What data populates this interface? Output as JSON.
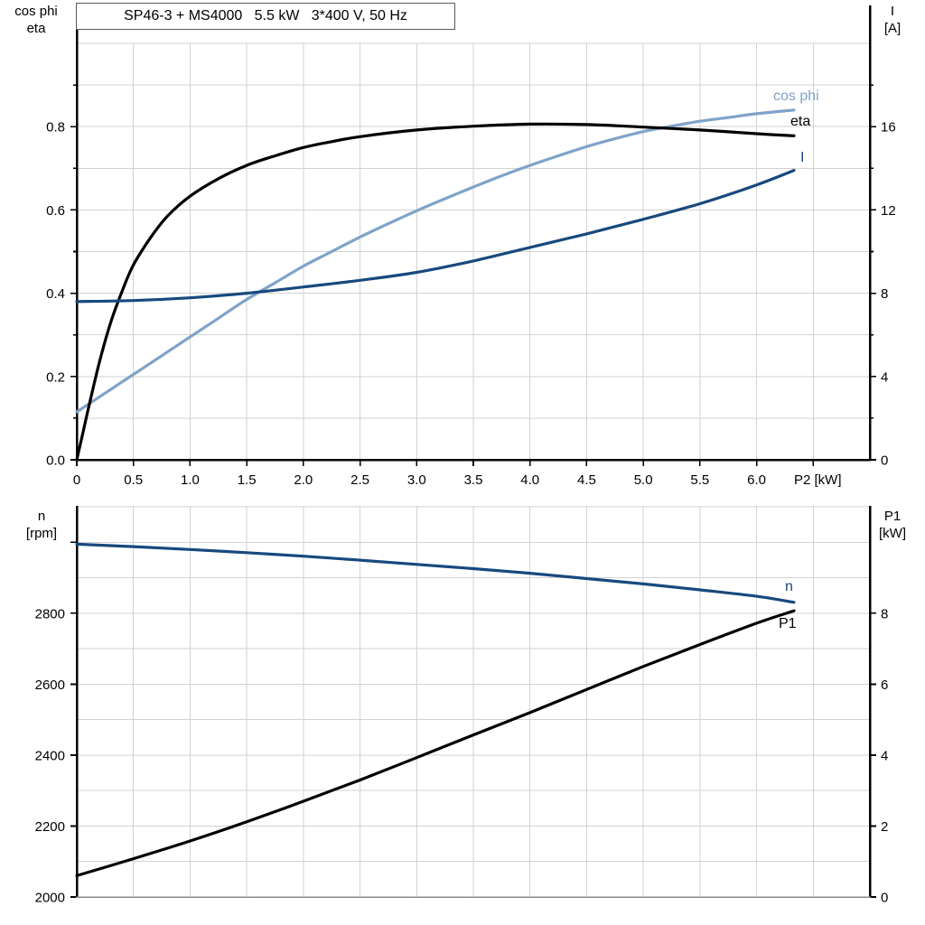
{
  "chart_data": [
    {
      "id": "top-chart",
      "type": "line",
      "title": "SP46-3 + MS4000   5.5 kW   3*400 V, 50 Hz",
      "xlabel": "P2 [kW]",
      "ylabel_left_lines": "cos phi\neta",
      "ylabel_right_lines": "I\n[A]",
      "xlim": [
        0,
        7
      ],
      "ylim_left": [
        0,
        1.0
      ],
      "ylim_right": [
        0,
        20
      ],
      "grid": {
        "x_step": 0.5,
        "y_step_left": 0.1,
        "color": "#d2d2d2"
      },
      "x_tick_values": [
        0,
        0.5,
        1,
        1.5,
        2,
        2.5,
        3,
        3.5,
        4,
        4.5,
        5,
        5.5,
        6,
        6.5
      ],
      "x_tick_labels": [
        "0",
        "0.5",
        "1.0",
        "1.5",
        "2.0",
        "2.5",
        "3.0",
        "3.5",
        "4.0",
        "4.5",
        "5.0",
        "5.5",
        "6.0",
        ""
      ],
      "left_tick_values": [
        0,
        0.2,
        0.4,
        0.6,
        0.8
      ],
      "left_tick_labels": [
        "0.0",
        "0.2",
        "0.4",
        "0.6",
        "0.8"
      ],
      "left_minor_tick_values": [
        0.1,
        0.3,
        0.5,
        0.7,
        0.9
      ],
      "right_tick_values": [
        0,
        4,
        8,
        12,
        16
      ],
      "right_tick_labels": [
        "0",
        "4",
        "8",
        "12",
        "16"
      ],
      "right_minor_tick_values": [
        2,
        6,
        10,
        14,
        18
      ],
      "series": [
        {
          "name": "cos phi",
          "axis": "left",
          "color": "#7FA3C8",
          "points": [
            [
              0,
              0.115
            ],
            [
              0.25,
              0.16
            ],
            [
              0.5,
              0.205
            ],
            [
              0.75,
              0.25
            ],
            [
              1,
              0.295
            ],
            [
              1.25,
              0.34
            ],
            [
              1.5,
              0.385
            ],
            [
              1.75,
              0.425
            ],
            [
              2,
              0.465
            ],
            [
              2.25,
              0.5
            ],
            [
              2.5,
              0.535
            ],
            [
              2.75,
              0.567
            ],
            [
              3,
              0.598
            ],
            [
              3.25,
              0.627
            ],
            [
              3.5,
              0.655
            ],
            [
              3.75,
              0.682
            ],
            [
              4,
              0.707
            ],
            [
              4.25,
              0.73
            ],
            [
              4.5,
              0.752
            ],
            [
              4.75,
              0.771
            ],
            [
              5,
              0.788
            ],
            [
              5.25,
              0.801
            ],
            [
              5.5,
              0.813
            ],
            [
              5.75,
              0.822
            ],
            [
              6,
              0.831
            ],
            [
              6.33,
              0.84
            ]
          ]
        },
        {
          "name": "eta",
          "axis": "left",
          "color": "#000000",
          "points": [
            [
              0,
              0
            ],
            [
              0.05,
              0.06
            ],
            [
              0.1,
              0.12
            ],
            [
              0.2,
              0.235
            ],
            [
              0.3,
              0.33
            ],
            [
              0.4,
              0.405
            ],
            [
              0.5,
              0.468
            ],
            [
              0.65,
              0.533
            ],
            [
              0.8,
              0.585
            ],
            [
              1,
              0.633
            ],
            [
              1.25,
              0.675
            ],
            [
              1.5,
              0.707
            ],
            [
              1.75,
              0.73
            ],
            [
              2,
              0.75
            ],
            [
              2.25,
              0.764
            ],
            [
              2.5,
              0.776
            ],
            [
              3,
              0.792
            ],
            [
              3.5,
              0.801
            ],
            [
              4,
              0.806
            ],
            [
              4.5,
              0.805
            ],
            [
              5,
              0.799
            ],
            [
              5.5,
              0.792
            ],
            [
              6,
              0.783
            ],
            [
              6.33,
              0.778
            ]
          ]
        },
        {
          "name": "I",
          "axis": "right",
          "color": "#17497D",
          "points": [
            [
              0,
              7.6
            ],
            [
              0.5,
              7.65
            ],
            [
              1,
              7.78
            ],
            [
              1.5,
              8.0
            ],
            [
              2,
              8.3
            ],
            [
              2.5,
              8.62
            ],
            [
              3,
              9.0
            ],
            [
              3.5,
              9.55
            ],
            [
              4,
              10.2
            ],
            [
              4.5,
              10.85
            ],
            [
              5,
              11.55
            ],
            [
              5.5,
              12.3
            ],
            [
              6,
              13.2
            ],
            [
              6.33,
              13.9
            ]
          ]
        }
      ]
    },
    {
      "id": "bottom-chart",
      "type": "line",
      "xlabel": "",
      "ylabel_left_lines": "n\n[rpm]",
      "ylabel_right_lines": "P1\n[kW]",
      "xlim": [
        0,
        7
      ],
      "ylim_left": [
        2000,
        3103
      ],
      "ylim_right": [
        0,
        11.03
      ],
      "grid": {
        "x_step": 0.5,
        "y_step_left": 100,
        "color": "#d2d2d2"
      },
      "left_tick_values": [
        2000,
        2200,
        2400,
        2600,
        2800,
        3000
      ],
      "left_tick_labels": [
        "2000",
        "2200",
        "2400",
        "2600",
        "2800",
        ""
      ],
      "left_minor_tick_values": [],
      "right_tick_values": [
        0,
        2,
        4,
        6,
        8
      ],
      "right_tick_labels": [
        "0",
        "2",
        "4",
        "6",
        "8"
      ],
      "right_minor_tick_values": [],
      "series": [
        {
          "name": "n",
          "axis": "left",
          "color": "#17497D",
          "points": [
            [
              0,
              2995
            ],
            [
              0.5,
              2988
            ],
            [
              1,
              2980
            ],
            [
              1.5,
              2971
            ],
            [
              2,
              2961
            ],
            [
              2.5,
              2950
            ],
            [
              3,
              2938
            ],
            [
              3.5,
              2926
            ],
            [
              4,
              2913
            ],
            [
              4.5,
              2898
            ],
            [
              5,
              2883
            ],
            [
              5.5,
              2866
            ],
            [
              6,
              2848
            ],
            [
              6.33,
              2831
            ]
          ]
        },
        {
          "name": "P1",
          "axis": "right",
          "color": "#000000",
          "points": [
            [
              0,
              0.6
            ],
            [
              0.5,
              1.08
            ],
            [
              1,
              1.58
            ],
            [
              1.5,
              2.12
            ],
            [
              2,
              2.7
            ],
            [
              2.5,
              3.3
            ],
            [
              3,
              3.93
            ],
            [
              3.5,
              4.57
            ],
            [
              4,
              5.2
            ],
            [
              4.5,
              5.85
            ],
            [
              5,
              6.5
            ],
            [
              5.5,
              7.12
            ],
            [
              6,
              7.72
            ],
            [
              6.33,
              8.07
            ]
          ]
        }
      ]
    }
  ]
}
